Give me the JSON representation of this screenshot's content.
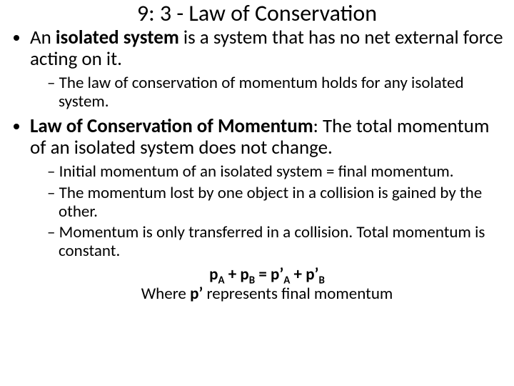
{
  "title": "9: 3 - Law of Conservation",
  "b1_bold": "isolated system",
  "b1_pre": "An ",
  "b1_post": " is a system that has no net external force acting on it.",
  "b1_sub1": "The law of conservation of momentum holds for any isolated system.",
  "b2_bold": "Law of Conservation of Momentum",
  "b2_post": ":  The total momentum of an isolated system does not change.",
  "b2_sub1": "Initial momentum of an isolated system = final momentum.",
  "b2_sub2": "The momentum lost by one object in a collision is gained by the other.",
  "b2_sub3": "Momentum is only transferred in a collision.  Total momentum is constant.",
  "eq_pA": "p",
  "eq_A": "A",
  "eq_plus": " + ",
  "eq_pB": "p",
  "eq_B": "B",
  "eq_eq": " = ",
  "eq_pAp": "p’",
  "eq_pBp": "p’",
  "where_pre": "Where ",
  "where_bold": "p’",
  "where_post": " represents final momentum"
}
